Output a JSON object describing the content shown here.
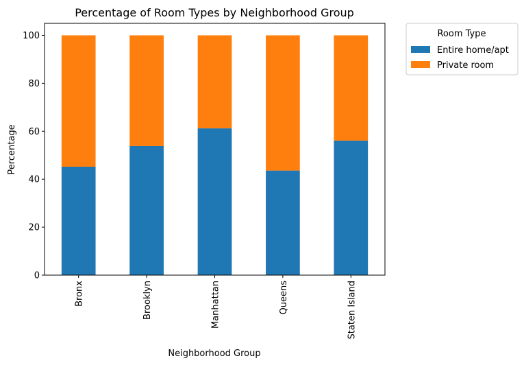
{
  "chart_data": {
    "type": "bar",
    "stacked": true,
    "title": "Percentage of Room Types by Neighborhood Group",
    "xlabel": "Neighborhood Group",
    "ylabel": "Percentage",
    "ylim": [
      0,
      105
    ],
    "yticks": [
      0,
      20,
      40,
      60,
      80,
      100
    ],
    "categories": [
      "Bronx",
      "Brooklyn",
      "Manhattan",
      "Queens",
      "Staten Island"
    ],
    "series": [
      {
        "name": "Entire home/apt",
        "color": "#1f77b4",
        "values": [
          45.2,
          53.8,
          61.2,
          43.6,
          56.1
        ]
      },
      {
        "name": "Private room",
        "color": "#ff7f0e",
        "values": [
          54.8,
          46.2,
          38.8,
          56.4,
          43.9
        ]
      }
    ],
    "legend": {
      "title": "Room Type",
      "position": "outside-right-top"
    },
    "grid": false
  }
}
